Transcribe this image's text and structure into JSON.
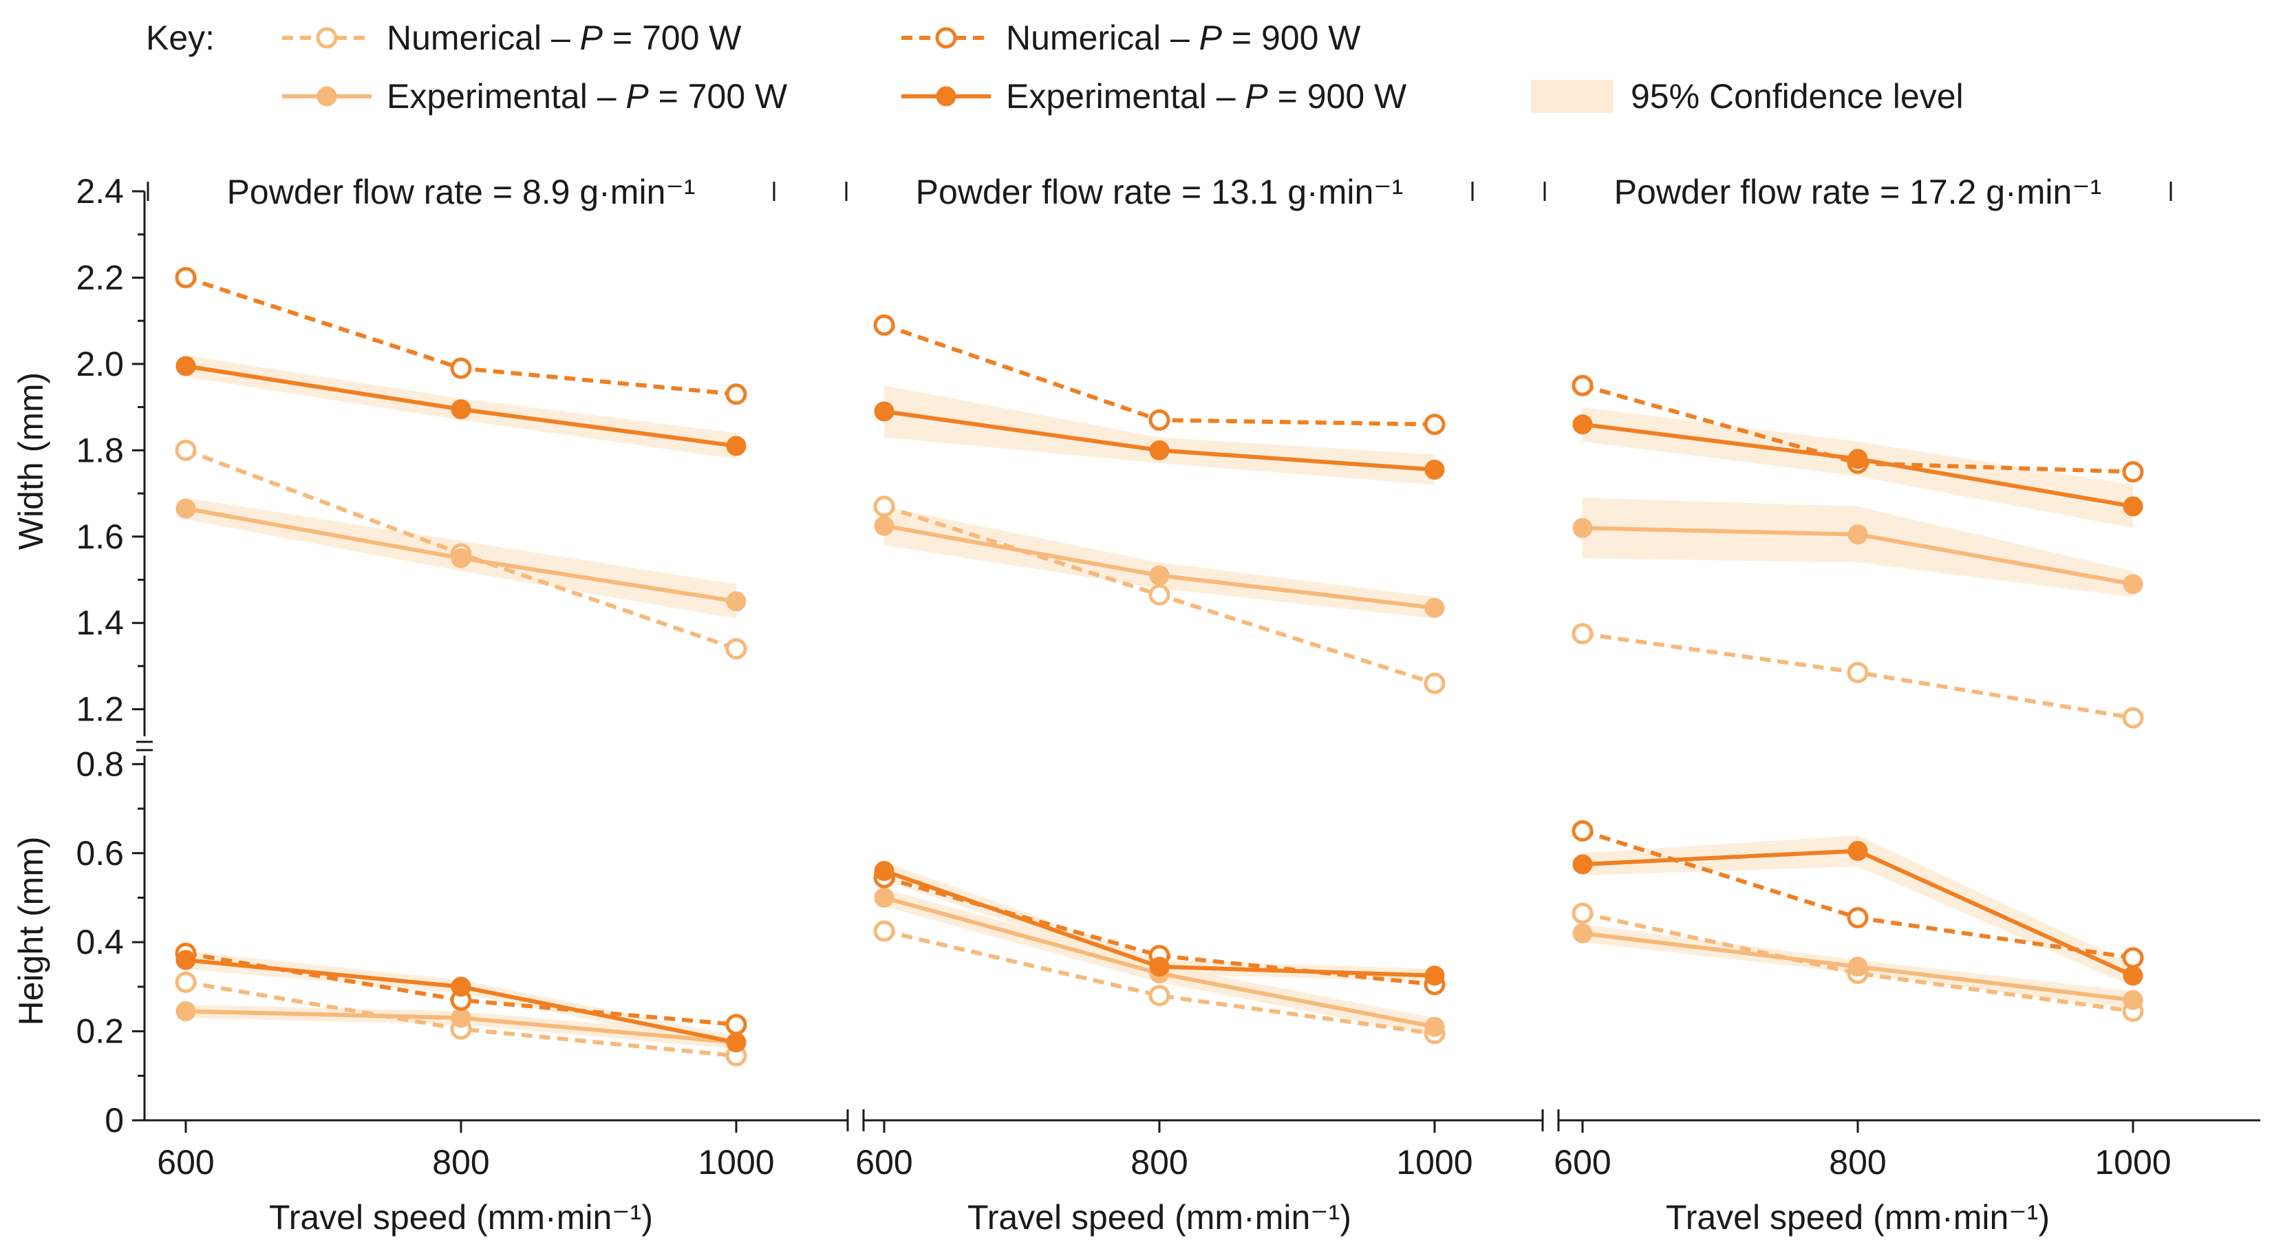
{
  "colors": {
    "p700": "#f7b97a",
    "p900": "#f07f22",
    "band": "#fdebd6",
    "axis": "#1a1a1a"
  },
  "legend": {
    "key_label": "Key:",
    "items": [
      {
        "id": "num700",
        "label_prefix": "Numerical – ",
        "label_var": "P",
        "label_suffix": " = 700 W",
        "style": "dashed-open",
        "power": "700"
      },
      {
        "id": "num900",
        "label_prefix": "Numerical – ",
        "label_var": "P",
        "label_suffix": " = 900 W",
        "style": "dashed-open",
        "power": "900"
      },
      {
        "id": "exp700",
        "label_prefix": "Experimental – ",
        "label_var": "P",
        "label_suffix": " = 700 W",
        "style": "solid-filled",
        "power": "700"
      },
      {
        "id": "exp900",
        "label_prefix": "Experimental – ",
        "label_var": "P",
        "label_suffix": " = 900 W",
        "style": "solid-filled",
        "power": "900"
      },
      {
        "id": "ci",
        "label": "95% Confidence level",
        "style": "band"
      }
    ]
  },
  "chart_data": {
    "type": "line",
    "x": [
      600,
      800,
      1000
    ],
    "xlabel": "Travel speed (mm·min⁻¹)",
    "x_tick_labels": [
      "600",
      "800",
      "1000"
    ],
    "width_axis": {
      "ylabel": "Width (mm)",
      "ylim": [
        1.15,
        2.4
      ],
      "ticks": [
        "1.2",
        "1.4",
        "1.6",
        "1.8",
        "2.0",
        "2.2",
        "2.4"
      ]
    },
    "height_axis": {
      "ylabel": "Height (mm)",
      "ylim": [
        0,
        0.85
      ],
      "ticks": [
        "0",
        "0.2",
        "0.4",
        "0.6",
        "0.8"
      ]
    },
    "panels": [
      {
        "title": "Powder flow rate = 8.9 g·min⁻¹",
        "width": {
          "num700": [
            1.8,
            1.56,
            1.34
          ],
          "num900": [
            2.2,
            1.99,
            1.93
          ],
          "exp700": [
            1.665,
            1.55,
            1.45
          ],
          "exp900": [
            1.995,
            1.895,
            1.81
          ],
          "ci700": {
            "lower": [
              1.64,
              1.52,
              1.41
            ],
            "upper": [
              1.69,
              1.59,
              1.49
            ]
          },
          "ci900": {
            "lower": [
              1.97,
              1.87,
              1.78
            ],
            "upper": [
              2.02,
              1.92,
              1.84
            ]
          }
        },
        "height": {
          "num700": [
            0.31,
            0.205,
            0.145
          ],
          "num900": [
            0.375,
            0.27,
            0.215
          ],
          "exp700": [
            0.245,
            0.23,
            0.175
          ],
          "exp900": [
            0.36,
            0.3,
            0.175
          ],
          "ci700": {
            "lower": [
              0.23,
              0.215,
              0.16
            ],
            "upper": [
              0.26,
              0.245,
              0.19
            ]
          },
          "ci900": {
            "lower": [
              0.34,
              0.285,
              0.16
            ],
            "upper": [
              0.38,
              0.315,
              0.19
            ]
          }
        }
      },
      {
        "title": "Powder flow rate = 13.1 g·min⁻¹",
        "width": {
          "num700": [
            1.67,
            1.465,
            1.26
          ],
          "num900": [
            2.09,
            1.87,
            1.86
          ],
          "exp700": [
            1.625,
            1.51,
            1.435
          ],
          "exp900": [
            1.89,
            1.8,
            1.755
          ],
          "ci700": {
            "lower": [
              1.58,
              1.48,
              1.41
            ],
            "upper": [
              1.67,
              1.54,
              1.46
            ]
          },
          "ci900": {
            "lower": [
              1.83,
              1.77,
              1.72
            ],
            "upper": [
              1.95,
              1.83,
              1.79
            ]
          }
        },
        "height": {
          "num700": [
            0.425,
            0.28,
            0.195
          ],
          "num900": [
            0.545,
            0.37,
            0.305
          ],
          "exp700": [
            0.5,
            0.33,
            0.21
          ],
          "exp900": [
            0.56,
            0.345,
            0.325
          ],
          "ci700": {
            "lower": [
              0.48,
              0.31,
              0.19
            ],
            "upper": [
              0.52,
              0.35,
              0.23
            ]
          },
          "ci900": {
            "lower": [
              0.54,
              0.33,
              0.31
            ],
            "upper": [
              0.58,
              0.36,
              0.34
            ]
          }
        }
      },
      {
        "title": "Powder flow rate = 17.2 g·min⁻¹",
        "width": {
          "num700": [
            1.375,
            1.285,
            1.18
          ],
          "num900": [
            1.95,
            1.77,
            1.75
          ],
          "exp700": [
            1.62,
            1.605,
            1.49
          ],
          "exp900": [
            1.86,
            1.78,
            1.67
          ],
          "ci700": {
            "lower": [
              1.55,
              1.54,
              1.46
            ],
            "upper": [
              1.69,
              1.67,
              1.52
            ]
          },
          "ci900": {
            "lower": [
              1.82,
              1.74,
              1.62
            ],
            "upper": [
              1.9,
              1.82,
              1.72
            ]
          }
        },
        "height": {
          "num700": [
            0.465,
            0.33,
            0.245
          ],
          "num900": [
            0.65,
            0.455,
            0.365
          ],
          "exp700": [
            0.42,
            0.345,
            0.27
          ],
          "exp900": [
            0.575,
            0.605,
            0.325
          ],
          "ci700": {
            "lower": [
              0.4,
              0.33,
              0.25
            ],
            "upper": [
              0.44,
              0.36,
              0.29
            ]
          },
          "ci900": {
            "lower": [
              0.55,
              0.57,
              0.3
            ],
            "upper": [
              0.6,
              0.64,
              0.35
            ]
          }
        }
      }
    ]
  }
}
